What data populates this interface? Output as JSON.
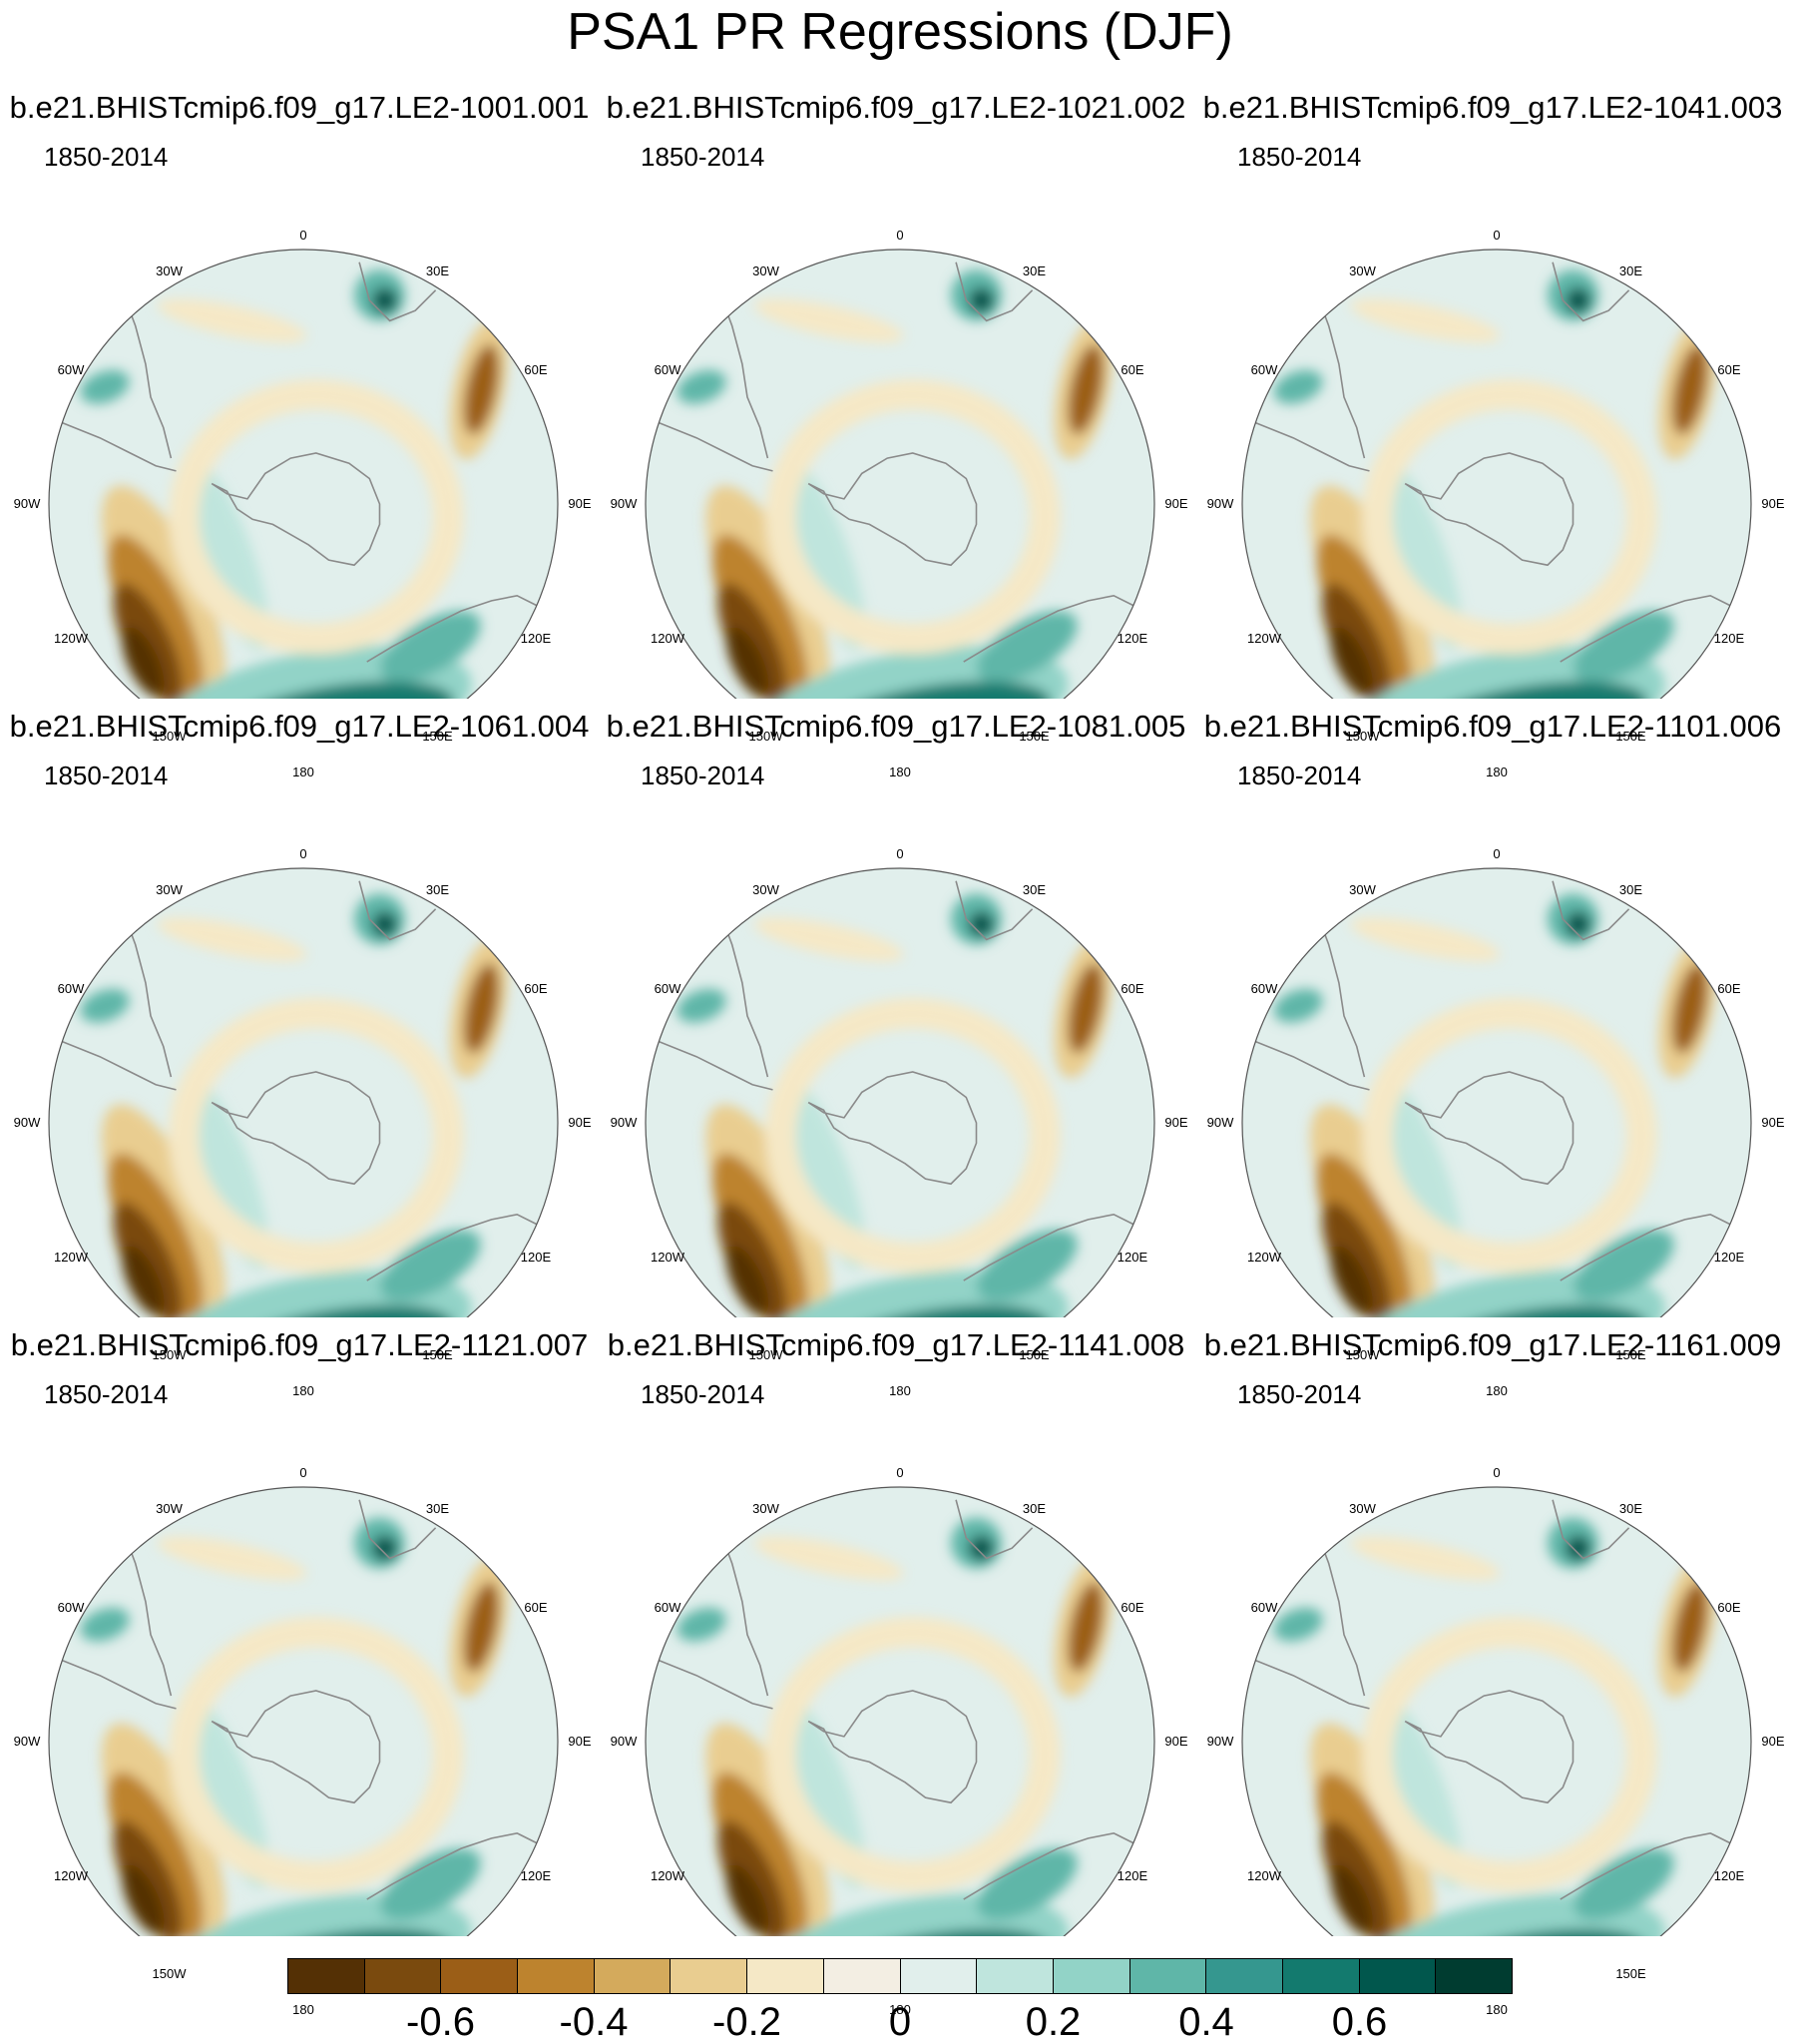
{
  "figure": {
    "title": "PSA1 PR Regressions (DJF)"
  },
  "panels": [
    {
      "title": "b.e21.BHISTcmip6.f09_g17.LE2-1001.001",
      "period": "1850-2014"
    },
    {
      "title": "b.e21.BHISTcmip6.f09_g17.LE2-1021.002",
      "period": "1850-2014"
    },
    {
      "title": "b.e21.BHISTcmip6.f09_g17.LE2-1041.003",
      "period": "1850-2014"
    },
    {
      "title": "b.e21.BHISTcmip6.f09_g17.LE2-1061.004",
      "period": "1850-2014"
    },
    {
      "title": "b.e21.BHISTcmip6.f09_g17.LE2-1081.005",
      "period": "1850-2014"
    },
    {
      "title": "b.e21.BHISTcmip6.f09_g17.LE2-1101.006",
      "period": "1850-2014"
    },
    {
      "title": "b.e21.BHISTcmip6.f09_g17.LE2-1121.007",
      "period": "1850-2014"
    },
    {
      "title": "b.e21.BHISTcmip6.f09_g17.LE2-1141.008",
      "period": "1850-2014"
    },
    {
      "title": "b.e21.BHISTcmip6.f09_g17.LE2-1161.009",
      "period": "1850-2014"
    }
  ],
  "longitude_labels": [
    "0",
    "30E",
    "60E",
    "90E",
    "120E",
    "150E",
    "180",
    "150W",
    "120W",
    "90W",
    "60W",
    "30W"
  ],
  "colorbar": {
    "colors": [
      "#543005",
      "#7a4a0e",
      "#9b5e17",
      "#bd832e",
      "#d4aa5c",
      "#e9cd90",
      "#f5e8c6",
      "#f3eee3",
      "#e1efec",
      "#bfe5dd",
      "#92d3c7",
      "#5fb6a8",
      "#35978f",
      "#137a6e",
      "#01574d",
      "#003c30"
    ],
    "tick_labels": [
      "-0.6",
      "-0.4",
      "-0.2",
      "0",
      "0.2",
      "0.4",
      "0.6"
    ],
    "tick_values": [
      -0.6,
      -0.4,
      -0.2,
      0,
      0.2,
      0.4,
      0.6
    ]
  },
  "colors": {
    "coastline": "#8a8a8a",
    "background_field": "#f3eee3"
  }
}
